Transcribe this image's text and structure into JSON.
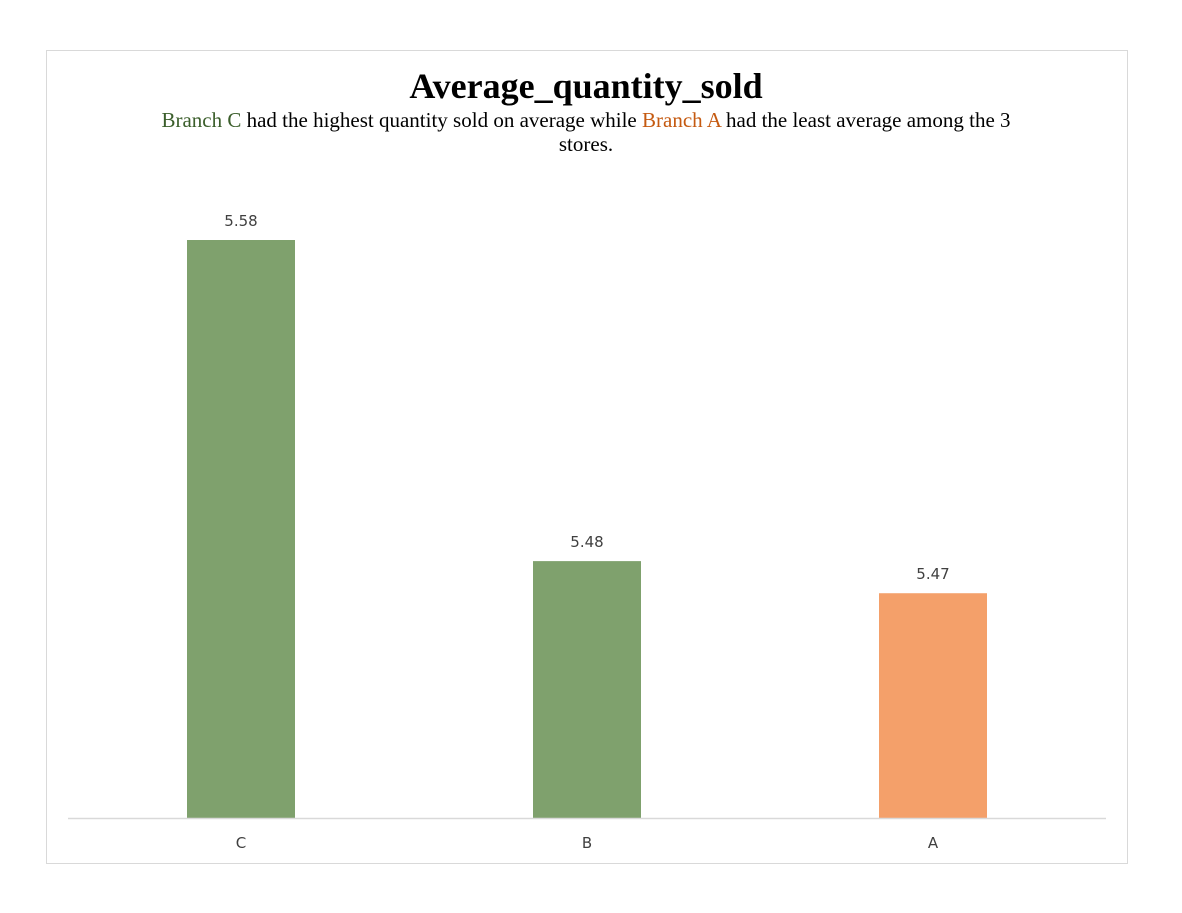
{
  "chart_data": {
    "type": "bar",
    "title": "Average_quantity_sold",
    "subtitle": {
      "part1": "Branch C",
      "part2": " had the highest quantity sold on average while ",
      "part3": "Branch A",
      "part4": " had the least average among the 3 stores."
    },
    "categories": [
      "C",
      "B",
      "A"
    ],
    "values": [
      5.58,
      5.48,
      5.47
    ],
    "data_labels": [
      "5.58",
      "5.48",
      "5.47"
    ],
    "bar_colors": [
      "#7fa16d",
      "#7fa16d",
      "#f4a06a"
    ],
    "ylim": [
      5.4,
      5.6
    ],
    "xlabel": "",
    "ylabel": "",
    "grid": false,
    "legend": "none"
  },
  "colors": {
    "highlight_green": "#3b5e2b",
    "highlight_orange": "#c55a11",
    "axis": "#d9d9d9",
    "label_text": "#404040"
  }
}
